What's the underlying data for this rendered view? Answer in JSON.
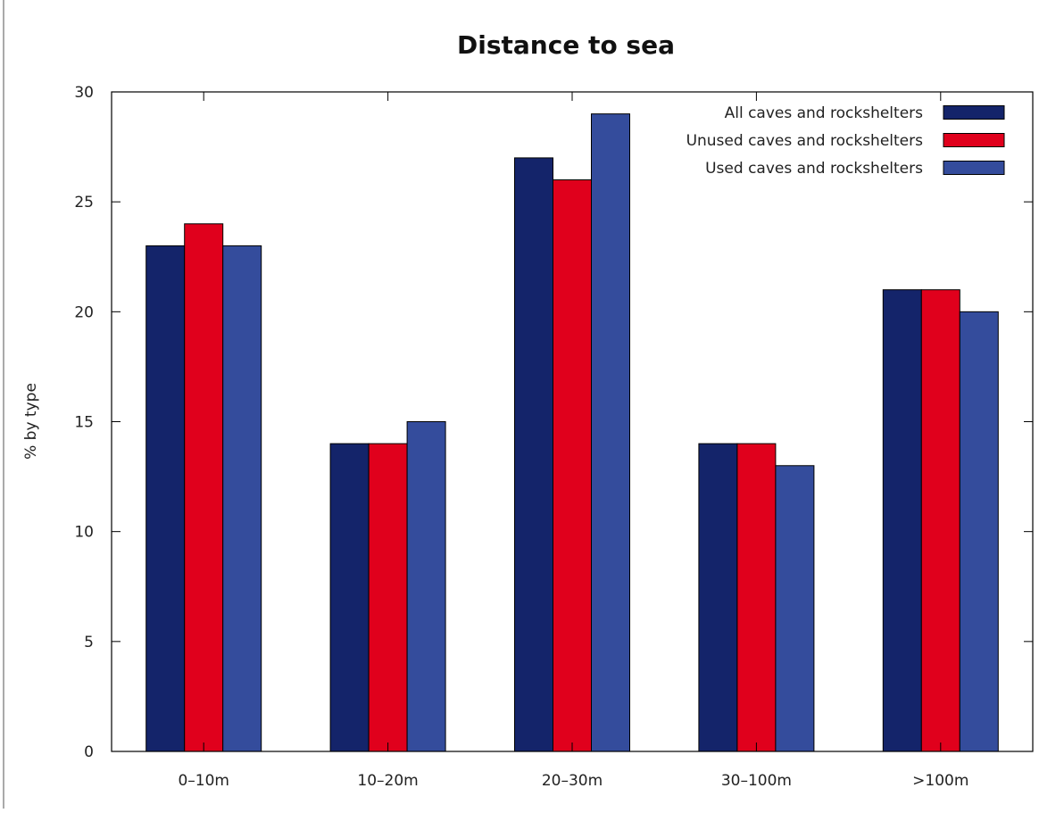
{
  "chart_data": {
    "type": "bar",
    "title": "Distance to sea",
    "xlabel": "",
    "ylabel": "% by type",
    "ylim": [
      0,
      30
    ],
    "yticks": [
      0,
      5,
      10,
      15,
      20,
      25,
      30
    ],
    "grid": false,
    "legend_position": "top-right",
    "categories": [
      "0–10m",
      "10–20m",
      "20–30m",
      "30–100m",
      ">100m"
    ],
    "series": [
      {
        "name": "All caves and rockshelters",
        "color": "#14246a",
        "values": [
          23,
          14,
          27,
          14,
          21
        ]
      },
      {
        "name": "Unused caves and rockshelters",
        "color": "#e0001c",
        "values": [
          24,
          14,
          26,
          14,
          21
        ]
      },
      {
        "name": "Used caves and rockshelters",
        "color": "#344c9c",
        "values": [
          23,
          15,
          29,
          13,
          20
        ]
      }
    ]
  }
}
